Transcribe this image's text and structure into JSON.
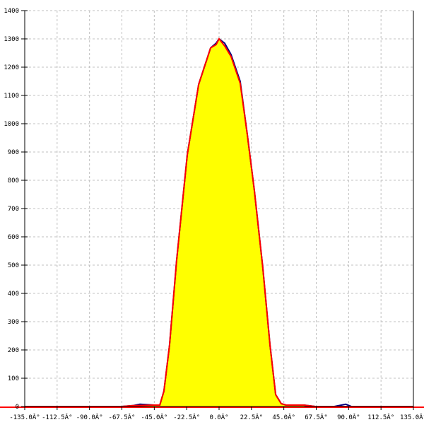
{
  "chart_data": {
    "type": "area",
    "xlim": [
      -135,
      135
    ],
    "ylim": [
      0,
      1400
    ],
    "grid": true,
    "x_ticks": [
      -135,
      -112.5,
      -90,
      -67.5,
      -45,
      -22.5,
      0,
      22.5,
      45,
      67.5,
      90,
      112.5,
      135
    ],
    "x_tick_labels": [
      "-135.0Â°",
      "-112.5Â°",
      "-90.0Â°",
      "-67.5Â°",
      "-45.0Â°",
      "-22.5Â°",
      "0.0Â°",
      "22.5Â°",
      "45.0Â°",
      "67.5Â°",
      "90.0Â°",
      "112.5Â°",
      "135.0Â°"
    ],
    "y_ticks": [
      0,
      100,
      200,
      300,
      400,
      500,
      600,
      700,
      800,
      900,
      1000,
      1100,
      1200,
      1300,
      1400
    ],
    "y_tick_labels": [
      "0",
      "100",
      "200",
      "300",
      "400",
      "500",
      "600",
      "700",
      "800",
      "900",
      "1000",
      "1100",
      "1200",
      "1300",
      "1400"
    ],
    "fill_color": "#ffff00",
    "series": [
      {
        "color": "#000080",
        "x": [
          -135,
          -67.5,
          -60,
          -55,
          -45,
          -41.2,
          -38.3,
          -34.4,
          -29.5,
          -22.1,
          -14.2,
          -5.9,
          -2,
          0,
          3.9,
          8.3,
          14.7,
          19.6,
          24.5,
          30.4,
          35.4,
          39.3,
          43.2,
          46.6,
          58.9,
          66.8,
          80,
          85,
          88,
          92,
          135
        ],
        "y": [
          0,
          0,
          3,
          8,
          5,
          5,
          55,
          217,
          516,
          890,
          1139,
          1268,
          1285,
          1300,
          1285,
          1245,
          1150,
          963,
          765,
          491,
          217,
          42,
          10,
          5,
          5,
          0,
          0,
          5,
          8,
          0,
          0
        ]
      },
      {
        "color": "#ff0000",
        "x": [
          -135,
          -67.5,
          -60,
          -45,
          -41.2,
          -38.3,
          -34.4,
          -29.5,
          -22.1,
          -14.2,
          -5.9,
          -2,
          0,
          3.9,
          8.3,
          14.7,
          19.6,
          24.5,
          30.4,
          35.4,
          39.3,
          43.2,
          46.6,
          58.9,
          66.8,
          135
        ],
        "y": [
          0,
          0,
          3,
          5,
          5,
          55,
          217,
          516,
          890,
          1139,
          1268,
          1280,
          1300,
          1275,
          1238,
          1143,
          963,
          765,
          491,
          217,
          42,
          10,
          5,
          5,
          0,
          0
        ]
      }
    ]
  }
}
